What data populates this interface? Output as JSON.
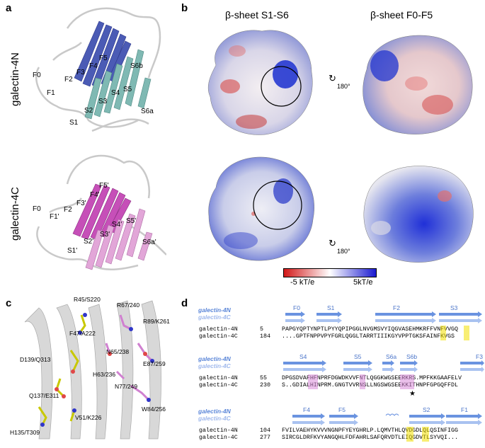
{
  "panels": {
    "a": "a",
    "b": "b",
    "c": "c",
    "d": "d"
  },
  "panel_a": {
    "label_top": "galectin-4N",
    "label_bottom": "galectin-4C",
    "strands_top": [
      "F0",
      "F1",
      "F2",
      "F3",
      "F4",
      "F5",
      "S1",
      "S2",
      "S3",
      "S4",
      "S5",
      "S6a",
      "S6b"
    ],
    "strands_bottom": [
      "F0",
      "F1'",
      "F2",
      "F3'",
      "F4'",
      "F5'",
      "S1'",
      "S2'",
      "S3'",
      "S4'",
      "S5'",
      "S6a'"
    ]
  },
  "panel_b": {
    "title_left": "β-sheet S1-S6",
    "title_right": "β-sheet F0-F5",
    "rotation": "180°",
    "colorbar_min": "-5 kT/e",
    "colorbar_max": "5kT/e"
  },
  "panel_c": {
    "labels": [
      "R45/S220",
      "F47/A222",
      "R67/240",
      "R89/K261",
      "D139/Q313",
      "N65/238",
      "E87/259",
      "H63/236",
      "N77/249",
      "Q137/E311",
      "W84/256",
      "V51/K226",
      "H135/T309"
    ]
  },
  "panel_d": {
    "legend_n": "galectin-4N",
    "legend_c": "galectin-4C",
    "blocks": [
      {
        "ss": [
          "F0",
          "S1",
          "F2",
          "S3"
        ],
        "n_label": "galectin-4N",
        "n_start": "5",
        "n_seq": "PAPGYQPTYNPTLPYYQPIPGGLNVGMSVYIQGVASEHMKRFFVNFVVGQ",
        "c_label": "galectin-4C",
        "c_start": "184",
        "c_seq": "....GPTFNPPVPYFGRLQGGLTARRTIIIKGYVPPTGKSFAINFKVGS"
      },
      {
        "ss": [
          "S4",
          "S5",
          "S6a",
          "S6b",
          "F3"
        ],
        "n_label": "galectin-4N",
        "n_start": "55",
        "n_seq": "DPGSDVAFHFNPRFDGWDKVVFNTLQGGKWGSEERKRS.MPFKKGAAFELV",
        "c_label": "galectin-4C",
        "c_start": "230",
        "c_seq": "S..GDIALHINPRM.GNGTVVRNSLLNGSWGSEEKKITHNPFGPGQFFDL",
        "star": "★"
      },
      {
        "ss": [
          "F4",
          "F5",
          "S2",
          "F1"
        ],
        "n_label": "galectin-4N",
        "n_start": "104",
        "n_seq": "FVILVAEHYKVVVNGNPFYEYGHRLP.LQMVTHLQVDGDLQLQSINFIGG",
        "c_label": "galectin-4C",
        "c_start": "277",
        "c_seq": "SIRCGLDRFKVYANGQHLFDFAHRLSAFQRVDTLEIQGDVTLSYVQI..."
      }
    ]
  },
  "colors": {
    "blue_strand": "#4b5bb5",
    "teal_strand": "#7fb9b3",
    "magenta_strand": "#c64fb8",
    "pink_strand": "#e2a6d8",
    "surface_blue": "#2233cc",
    "surface_red": "#d44040",
    "seq_arrow": "#6a93e0",
    "seq_arrow_light": "#a9c2f0",
    "highlight_yellow": "#f3e000",
    "highlight_magenta": "#d98ad8"
  }
}
